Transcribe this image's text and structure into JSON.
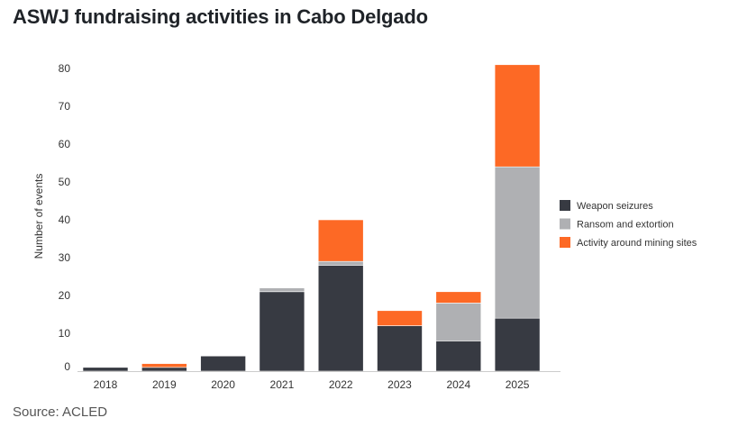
{
  "chart_data": {
    "type": "bar",
    "stacked": true,
    "title": "ASWJ fundraising activities in Cabo Delgado",
    "source": "Source: ACLED",
    "xlabel": "",
    "ylabel": "Number of events",
    "ylim": [
      0,
      85
    ],
    "yticks": [
      0,
      10,
      20,
      30,
      40,
      50,
      60,
      70,
      80
    ],
    "grid": false,
    "legend_position": "right",
    "categories": [
      "2018",
      "2019",
      "2020",
      "2021",
      "2022",
      "2023",
      "2024",
      "2025"
    ],
    "series": [
      {
        "name": "Weapon seizures",
        "color": "#373a42",
        "values": [
          1,
          1,
          4,
          21,
          28,
          12,
          8,
          14
        ]
      },
      {
        "name": "Ransom and extortion",
        "color": "#afb0b3",
        "values": [
          0,
          0,
          0,
          1,
          1,
          0,
          10,
          40
        ]
      },
      {
        "name": "Activity around mining sites",
        "color": "#fd6925",
        "values": [
          0,
          1,
          0,
          0,
          11,
          4,
          3,
          27
        ]
      }
    ]
  }
}
